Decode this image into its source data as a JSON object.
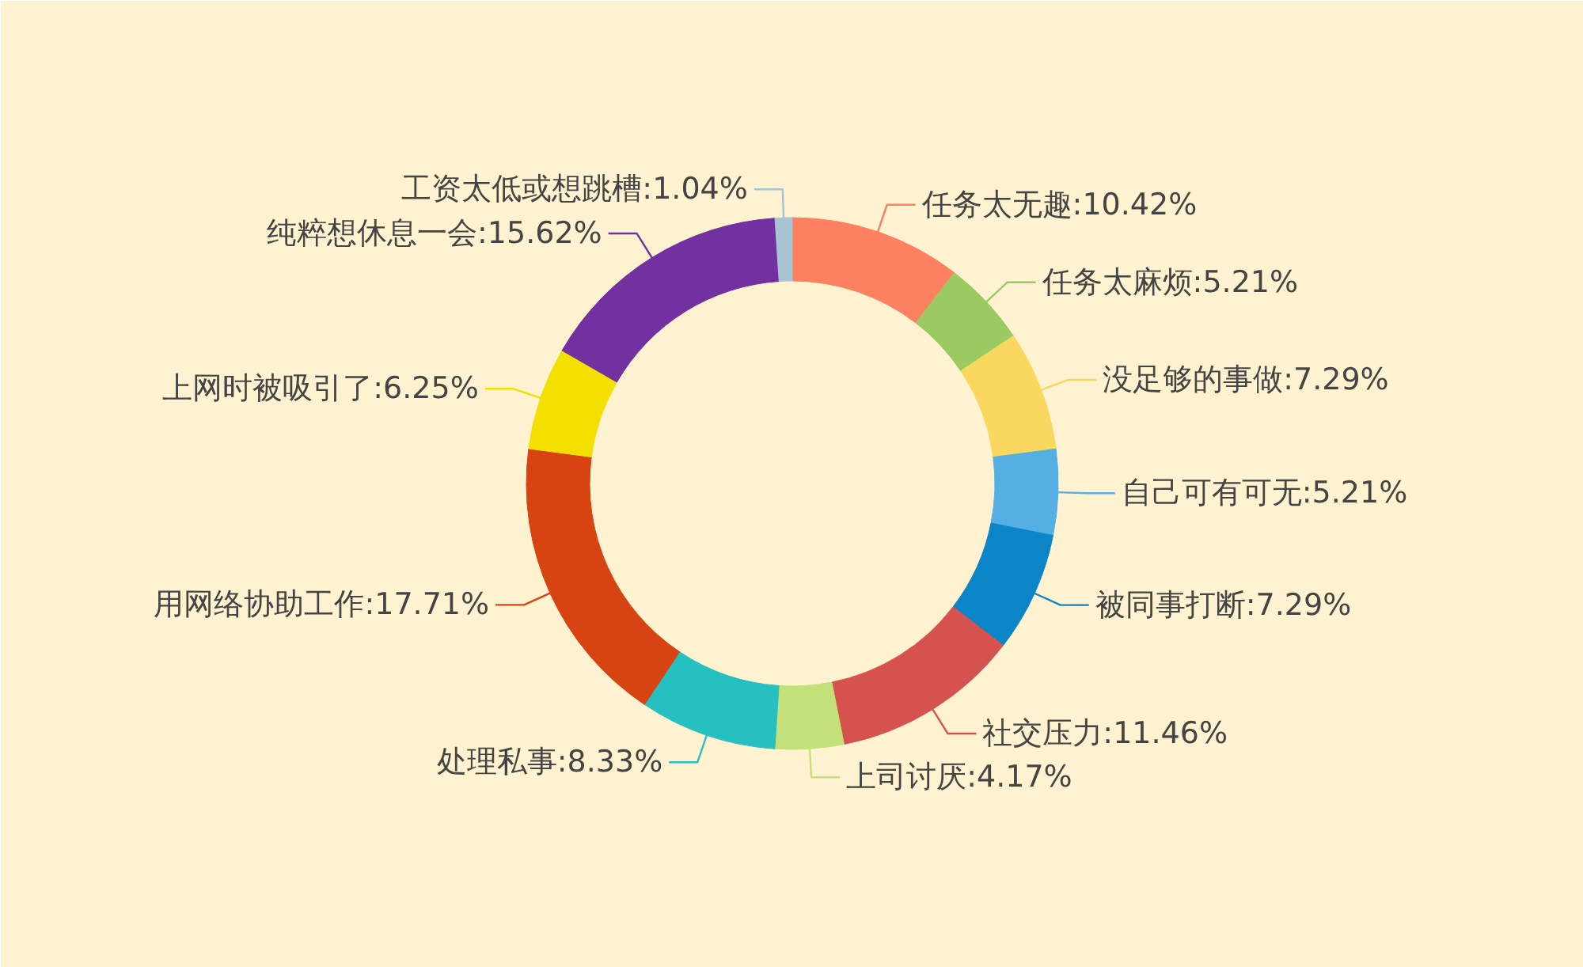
{
  "chart_data": {
    "type": "donut",
    "categories": [
      "任务太无趣",
      "任务太麻烦",
      "没足够的事做",
      "自己可有可无",
      "被同事打断",
      "社交压力",
      "上司讨厌",
      "处理私事",
      "用网络协助工作",
      "上网时被吸引了",
      "纯粹想休息一会",
      "工资太低或想跳槽"
    ],
    "values": [
      10.42,
      5.21,
      7.29,
      5.21,
      7.29,
      11.46,
      4.17,
      8.33,
      17.71,
      6.25,
      15.62,
      1.04
    ],
    "colors": [
      "#fd8160",
      "#9bca63",
      "#fad860",
      "#56afe2",
      "#0a85c8",
      "#d6524e",
      "#c4e179",
      "#27c0c1",
      "#d74412",
      "#f3df00",
      "#7330a0",
      "#a7c4d3"
    ],
    "value_labels": [
      ":10.42%",
      ":5.21%",
      ":7.29%",
      ":5.21%",
      ":7.29%",
      ":11.46%",
      ":4.17%",
      ":8.33%",
      ":17.71%",
      ":6.25%",
      ":15.62%",
      ":1.04%"
    ]
  }
}
